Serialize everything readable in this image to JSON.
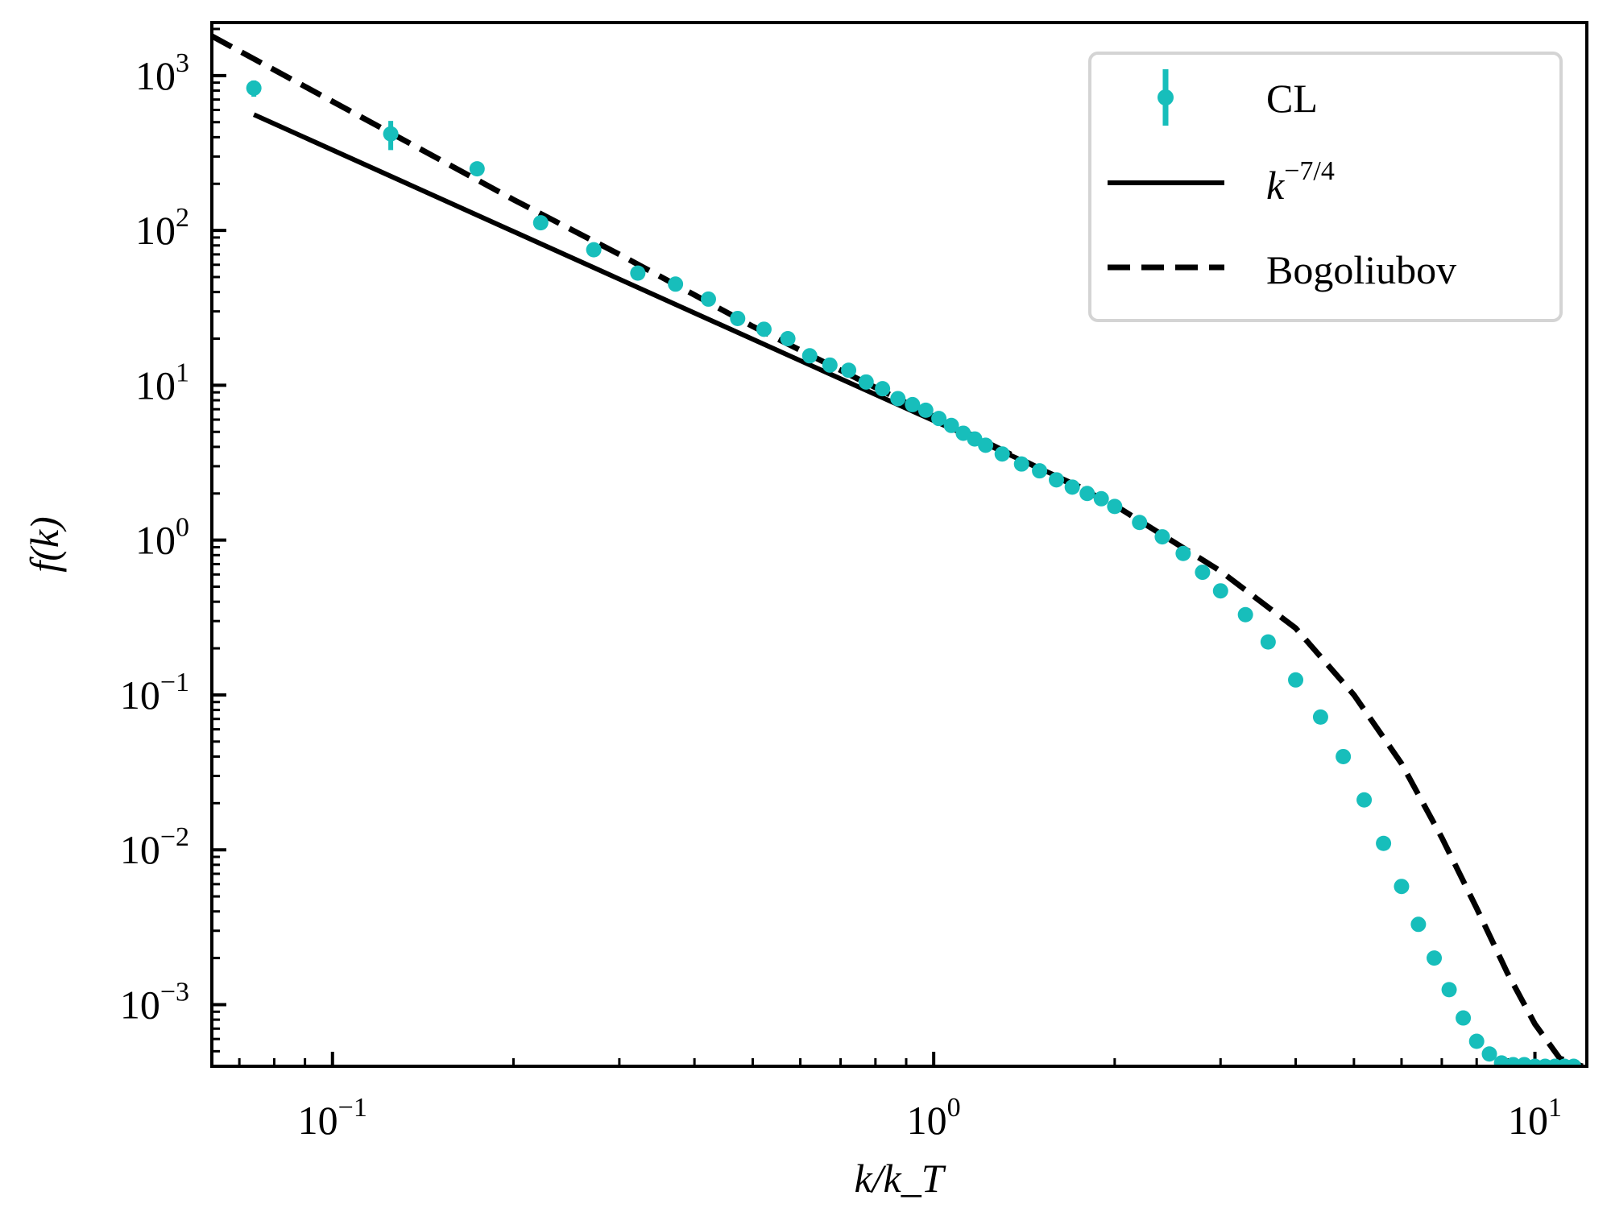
{
  "chart_data": {
    "type": "scatter",
    "xscale": "log",
    "yscale": "log",
    "xlim": [
      0.063,
      12.2
    ],
    "ylim": [
      0.0004,
      2200
    ],
    "xlabel": "k/k_T",
    "ylabel": "f(k)",
    "x_ticks": [
      {
        "value": 0.1,
        "base": "10",
        "exp": "−1"
      },
      {
        "value": 1,
        "base": "10",
        "exp": "0"
      },
      {
        "value": 10,
        "base": "10",
        "exp": "1"
      }
    ],
    "y_ticks": [
      {
        "value": 0.001,
        "base": "10",
        "exp": "−3"
      },
      {
        "value": 0.01,
        "base": "10",
        "exp": "−2"
      },
      {
        "value": 0.1,
        "base": "10",
        "exp": "−1"
      },
      {
        "value": 1,
        "base": "10",
        "exp": "0"
      },
      {
        "value": 10,
        "base": "10",
        "exp": "1"
      },
      {
        "value": 100,
        "base": "10",
        "exp": "2"
      },
      {
        "value": 1000,
        "base": "10",
        "exp": "3"
      }
    ],
    "legend": {
      "position": "top-right",
      "entries": [
        {
          "label": "CL",
          "style": "marker-errorbar"
        },
        {
          "label": "k",
          "sup": "−7/4",
          "style": "solid"
        },
        {
          "label": "Bogoliubov",
          "style": "dashed"
        }
      ]
    },
    "colors": {
      "cl": "#17bebb",
      "line": "#000000"
    },
    "series": [
      {
        "name": "CL",
        "type": "scatter",
        "x": [
          0.074,
          0.125,
          0.174,
          0.222,
          0.272,
          0.322,
          0.372,
          0.422,
          0.472,
          0.522,
          0.572,
          0.622,
          0.672,
          0.722,
          0.772,
          0.822,
          0.872,
          0.922,
          0.97,
          1.02,
          1.07,
          1.12,
          1.17,
          1.22,
          1.3,
          1.4,
          1.5,
          1.6,
          1.7,
          1.8,
          1.9,
          2.0,
          2.2,
          2.4,
          2.6,
          2.8,
          3.0,
          3.3,
          3.6,
          4.0,
          4.4,
          4.8,
          5.2,
          5.6,
          6.0,
          6.4,
          6.8,
          7.2,
          7.6,
          8.0,
          8.4,
          8.8,
          9.2,
          9.6,
          10.0,
          10.4,
          10.8,
          11.2,
          11.6
        ],
        "y": [
          830,
          420,
          250,
          112,
          75,
          53,
          45,
          36,
          27,
          23,
          20,
          15.5,
          13.5,
          12.5,
          10.5,
          9.5,
          8.2,
          7.5,
          6.9,
          6.1,
          5.5,
          4.9,
          4.5,
          4.1,
          3.6,
          3.1,
          2.8,
          2.45,
          2.2,
          2.0,
          1.85,
          1.65,
          1.3,
          1.05,
          0.82,
          0.62,
          0.47,
          0.33,
          0.22,
          0.125,
          0.072,
          0.04,
          0.021,
          0.011,
          0.0058,
          0.0033,
          0.002,
          0.00125,
          0.00082,
          0.00058,
          0.00048,
          0.00042,
          0.00041,
          0.00041,
          0.0004,
          0.0004,
          0.0004,
          0.0004,
          0.0004
        ],
        "yerr": [
          100,
          90,
          0,
          0,
          0,
          0,
          0,
          0,
          0,
          0,
          0,
          0,
          0,
          0,
          0,
          0,
          0,
          0,
          0,
          0,
          0,
          0,
          0,
          0,
          0,
          0,
          0,
          0,
          0,
          0,
          0,
          0,
          0,
          0,
          0,
          0,
          0,
          0,
          0,
          0,
          0,
          0,
          0,
          0,
          0,
          0,
          0,
          0,
          0,
          0,
          0,
          0,
          0,
          0,
          0,
          0,
          0,
          0,
          0
        ]
      },
      {
        "name": "k^{-7/4}",
        "type": "line",
        "style": "solid",
        "x": [
          0.074,
          1.75
        ],
        "y": [
          560,
          2.22
        ]
      },
      {
        "name": "Bogoliubov",
        "type": "line",
        "style": "dashed",
        "x": [
          0.063,
          0.1,
          0.15,
          0.2,
          0.3,
          0.5,
          0.7,
          1.0,
          1.5,
          2.0,
          3.0,
          4.0,
          5.0,
          6.0,
          7.0,
          8.0,
          9.0,
          10.0,
          11.0,
          12.0
        ],
        "y": [
          1800,
          680,
          290,
          158,
          70,
          24,
          12.5,
          6.3,
          2.9,
          1.68,
          0.63,
          0.27,
          0.1,
          0.036,
          0.012,
          0.0042,
          0.0016,
          0.00075,
          0.00045,
          0.0004
        ]
      }
    ]
  }
}
